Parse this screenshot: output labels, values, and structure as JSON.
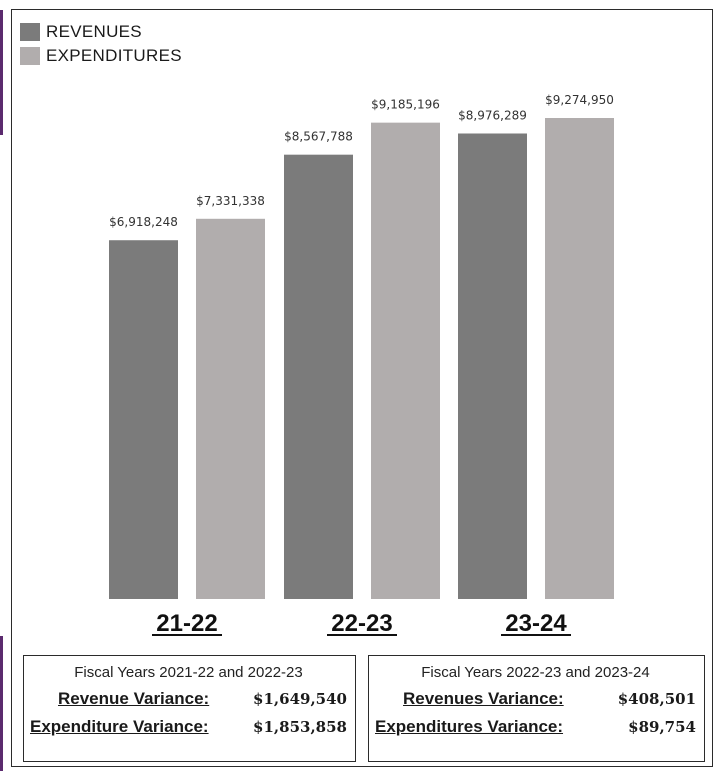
{
  "legend": [
    {
      "label": "REVENUES",
      "color": "#7b7b7b"
    },
    {
      "label": "EXPENDITURES",
      "color": "#b1adad"
    }
  ],
  "chart_data": {
    "type": "bar",
    "categories": [
      "21-22",
      "22-23",
      "23-24"
    ],
    "series": [
      {
        "name": "REVENUES",
        "color": "#7b7b7b",
        "values": [
          6918248,
          8567788,
          8976289
        ],
        "labels": [
          "$6,918,248",
          "$8,567,788",
          "$8,976,289"
        ]
      },
      {
        "name": "EXPENDITURES",
        "color": "#b1adad",
        "values": [
          7331338,
          9185196,
          9274950
        ],
        "labels": [
          "$7,331,338",
          "$9,185,196",
          "$9,274,950"
        ]
      }
    ],
    "title": "",
    "xlabel": "",
    "ylabel": "",
    "ylim": [
      0,
      10000000
    ],
    "grid": false,
    "legend_position": "top-left"
  },
  "variance_boxes": [
    {
      "title": "Fiscal Years 2021-22  and  2022-23",
      "rows": [
        {
          "label": "Revenue Variance:",
          "value": "$1,649,540"
        },
        {
          "label": "Expenditure Variance:",
          "value": "$1,853,858"
        }
      ]
    },
    {
      "title": "Fiscal Years 2022-23  and  2023-24",
      "rows": [
        {
          "label": "Revenues Variance:",
          "value": "$408,501"
        },
        {
          "label": "Expenditures Variance:",
          "value": "$89,754"
        }
      ]
    }
  ]
}
